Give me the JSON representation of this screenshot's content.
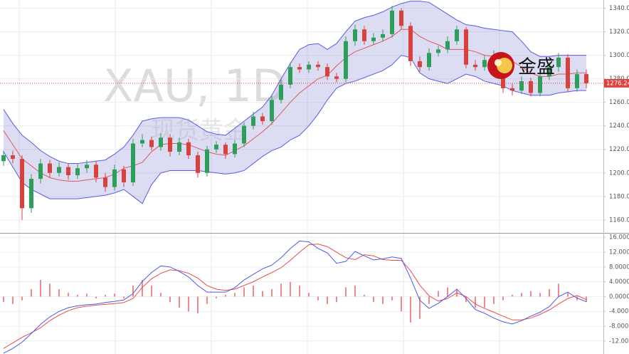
{
  "brand": "金盛",
  "chart_data": [
    {
      "type": "candlestick",
      "title": "XAU, 1D",
      "subtitle": "现货黄金",
      "open": [
        1210,
        1215,
        1212,
        1170,
        1195,
        1208,
        1200,
        1205,
        1198,
        1204,
        1207,
        1196,
        1188,
        1203,
        1192,
        1225,
        1228,
        1222,
        1230,
        1218,
        1226,
        1215,
        1200,
        1220,
        1224,
        1216,
        1225,
        1240,
        1248,
        1244,
        1262,
        1275,
        1290,
        1288,
        1292,
        1290,
        1282,
        1280,
        1312,
        1322,
        1312,
        1315,
        1318,
        1338,
        1325,
        1295,
        1290,
        1302,
        1305,
        1312,
        1322,
        1292,
        1290,
        1296,
        1300,
        1272,
        1270,
        1278,
        1268,
        1282,
        1290,
        1298,
        1272,
        1284
      ],
      "high": [
        1219,
        1219,
        1215,
        1199,
        1212,
        1211,
        1209,
        1208,
        1208,
        1211,
        1210,
        1200,
        1207,
        1206,
        1229,
        1233,
        1231,
        1234,
        1233,
        1230,
        1229,
        1218,
        1223,
        1227,
        1226,
        1228,
        1243,
        1252,
        1251,
        1266,
        1279,
        1294,
        1293,
        1295,
        1295,
        1293,
        1285,
        1316,
        1326,
        1325,
        1319,
        1322,
        1342,
        1340,
        1328,
        1299,
        1306,
        1308,
        1316,
        1325,
        1324,
        1296,
        1300,
        1304,
        1302,
        1276,
        1282,
        1281,
        1286,
        1294,
        1302,
        1301,
        1288,
        1288
      ],
      "low": [
        1206,
        1208,
        1160,
        1166,
        1191,
        1196,
        1197,
        1194,
        1195,
        1200,
        1192,
        1184,
        1185,
        1188,
        1189,
        1222,
        1219,
        1219,
        1214,
        1215,
        1212,
        1196,
        1197,
        1217,
        1212,
        1213,
        1222,
        1237,
        1241,
        1241,
        1259,
        1272,
        1285,
        1285,
        1287,
        1279,
        1277,
        1277,
        1308,
        1309,
        1309,
        1312,
        1315,
        1322,
        1291,
        1286,
        1287,
        1299,
        1302,
        1309,
        1289,
        1287,
        1287,
        1293,
        1268,
        1266,
        1267,
        1265,
        1265,
        1279,
        1286,
        1269,
        1269,
        1272
      ],
      "close": [
        1215,
        1212,
        1170,
        1195,
        1208,
        1200,
        1205,
        1198,
        1204,
        1207,
        1196,
        1188,
        1203,
        1192,
        1225,
        1228,
        1222,
        1230,
        1218,
        1226,
        1215,
        1200,
        1220,
        1224,
        1216,
        1225,
        1240,
        1248,
        1244,
        1262,
        1275,
        1290,
        1288,
        1292,
        1290,
        1282,
        1280,
        1312,
        1322,
        1312,
        1315,
        1318,
        1338,
        1325,
        1295,
        1290,
        1302,
        1305,
        1312,
        1322,
        1292,
        1290,
        1296,
        1300,
        1272,
        1270,
        1278,
        1268,
        1282,
        1290,
        1298,
        1272,
        1284,
        1276.24
      ],
      "up_color": "#2e9e5b",
      "down_color": "#d9423c",
      "bands": {
        "color": "#5a5ae6",
        "fill": "#9c9cdc",
        "middle_color": "#e05a5a",
        "upper": [
          1254,
          1242,
          1232,
          1226,
          1219,
          1214,
          1210,
          1208,
          1208,
          1209,
          1210,
          1211,
          1216,
          1222,
          1232,
          1244,
          1246,
          1247,
          1247,
          1247,
          1245,
          1240,
          1235,
          1233,
          1232,
          1238,
          1244,
          1250,
          1256,
          1266,
          1280,
          1293,
          1305,
          1309,
          1310,
          1305,
          1310,
          1320,
          1329,
          1332,
          1334,
          1337,
          1341,
          1344,
          1346,
          1346,
          1345,
          1340,
          1335,
          1330,
          1326,
          1325,
          1323,
          1322,
          1321,
          1320,
          1312,
          1303,
          1299,
          1299,
          1300,
          1300,
          1300,
          1300
        ],
        "middle": [
          1236,
          1224,
          1212,
          1206,
          1200,
          1196,
          1194,
          1193,
          1193,
          1194,
          1195,
          1196,
          1199,
          1204,
          1206,
          1209,
          1218,
          1224,
          1225,
          1225,
          1224,
          1221,
          1218,
          1216,
          1215,
          1219,
          1223,
          1229,
          1235,
          1242,
          1251,
          1260,
          1268,
          1274,
          1280,
          1283,
          1291,
          1298,
          1303,
          1306,
          1309,
          1312,
          1316,
          1322,
          1322,
          1316,
          1312,
          1309,
          1305,
          1305,
          1305,
          1303,
          1300,
          1299,
          1297,
          1295,
          1290,
          1285,
          1282,
          1282,
          1284,
          1284,
          1285,
          1285
        ],
        "lower": [
          1218,
          1205,
          1192,
          1186,
          1182,
          1178,
          1178,
          1178,
          1178,
          1179,
          1180,
          1181,
          1183,
          1186,
          1180,
          1174,
          1190,
          1200,
          1202,
          1202,
          1202,
          1202,
          1201,
          1200,
          1199,
          1200,
          1202,
          1208,
          1214,
          1219,
          1222,
          1228,
          1232,
          1240,
          1250,
          1262,
          1272,
          1276,
          1278,
          1281,
          1284,
          1287,
          1292,
          1300,
          1298,
          1285,
          1280,
          1278,
          1276,
          1280,
          1284,
          1282,
          1278,
          1276,
          1274,
          1270,
          1268,
          1266,
          1266,
          1266,
          1268,
          1269,
          1270,
          1270
        ]
      },
      "last_price": {
        "value": 1276.24,
        "label": "1276.24"
      },
      "last_price_color": "#e0413f",
      "ylim": [
        1149,
        1347
      ],
      "yticks": [
        {
          "value": 1160,
          "label": "1160.00"
        },
        {
          "value": 1180,
          "label": "1180.00"
        },
        {
          "value": 1200,
          "label": "1200.00"
        },
        {
          "value": 1220,
          "label": "1220.00"
        },
        {
          "value": 1240,
          "label": "1240.00"
        },
        {
          "value": 1260,
          "label": "1260.00"
        },
        {
          "value": 1280,
          "label": "1280.00"
        },
        {
          "value": 1300,
          "label": "1300.00"
        },
        {
          "value": 1320,
          "label": "1320.00"
        },
        {
          "value": 1340,
          "label": "1340.00"
        }
      ],
      "grid": true
    },
    {
      "type": "macd",
      "histogram": [
        -1.5,
        -2,
        -1,
        2,
        4.5,
        3.5,
        2,
        1,
        0.5,
        0.8,
        -0.5,
        0.5,
        0.8,
        -0.5,
        3,
        4.5,
        3,
        1,
        -1.5,
        -3,
        -4,
        -4.5,
        -2,
        -0.5,
        0.5,
        1,
        2.5,
        3,
        1.5,
        2,
        3.5,
        4,
        3,
        1,
        -1,
        -2,
        -1.5,
        2.5,
        3,
        0.5,
        -1.5,
        -2,
        -1,
        -4,
        -7,
        -6,
        -2,
        1.5,
        2.5,
        2,
        -1.5,
        -3,
        -3,
        -2,
        -1,
        0.5,
        1,
        1.5,
        1,
        2,
        3.5,
        1,
        -1,
        -1.5
      ],
      "macd": [
        -15.3,
        -14,
        -12.3,
        -10,
        -7.5,
        -5.5,
        -4,
        -3,
        -2.5,
        -2.2,
        -2,
        -1.6,
        -1.3,
        -0.9,
        0.8,
        4.1,
        6.5,
        8.3,
        8,
        6.8,
        5.3,
        3,
        1.2,
        1.2,
        1.2,
        2.4,
        4.5,
        6,
        7.5,
        8.5,
        10.5,
        13,
        15,
        14.8,
        13,
        11.8,
        9,
        9.5,
        12.2,
        11,
        9.9,
        10.2,
        10.7,
        10.3,
        5,
        -1,
        -3.2,
        -1.8,
        0,
        2,
        -0.5,
        -3.5,
        -4.5,
        -5.8,
        -6.8,
        -7.4,
        -6.5,
        -5.3,
        -4.2,
        -2.7,
        0,
        1.2,
        -0.4,
        -1.4
      ],
      "signal": [
        -14,
        -12.5,
        -11,
        -9.8,
        -8.4,
        -6.5,
        -5,
        -3.8,
        -3,
        -2.6,
        -2.3,
        -2.1,
        -1.9,
        -1.6,
        -0.5,
        2.5,
        4.8,
        6.3,
        7.2,
        7,
        6.3,
        5,
        3,
        2,
        1.7,
        2,
        3,
        4,
        5.3,
        6.5,
        7.8,
        9.8,
        12,
        14,
        14.2,
        13.5,
        12,
        10.5,
        10,
        11.3,
        11,
        10,
        9.8,
        9.8,
        7,
        3.1,
        0.2,
        -1.2,
        -0.5,
        1,
        0,
        -2,
        -3.2,
        -4.2,
        -5.3,
        -6.3,
        -6.3,
        -5.8,
        -4.8,
        -3.6,
        -2,
        -0.5,
        0.3,
        -0.8
      ],
      "histogram_color": "#f08a8a",
      "macd_color": "#4a5ae8",
      "signal_color": "#ec4b4b",
      "ylim": [
        -15.5,
        17.2
      ],
      "yticks": [
        {
          "value": 16,
          "label": "16.0000"
        },
        {
          "value": 12,
          "label": "12.0000"
        },
        {
          "value": 8,
          "label": "8.0000"
        },
        {
          "value": 4,
          "label": "4.0000"
        },
        {
          "value": 0,
          "label": "0.0000"
        },
        {
          "value": -4,
          "label": "-4.0000"
        },
        {
          "value": -8,
          "label": "-8.0000"
        },
        {
          "value": -12,
          "label": "-12.0000"
        }
      ],
      "grid": true
    }
  ]
}
